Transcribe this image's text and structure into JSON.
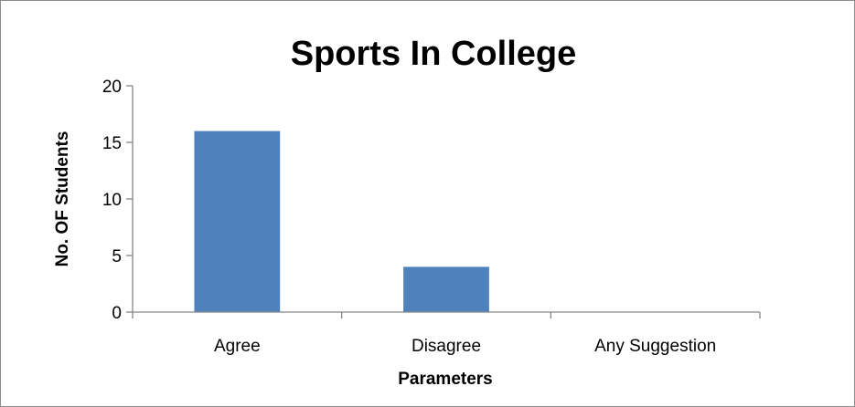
{
  "chart_data": {
    "type": "bar",
    "title": "Sports In College",
    "xlabel": "Parameters",
    "ylabel": "No. OF Students",
    "categories": [
      "Agree",
      "Disagree",
      "Any Suggestion"
    ],
    "values": [
      16,
      4,
      0
    ],
    "ylim": [
      0,
      20
    ],
    "yticks": [
      0,
      5,
      10,
      15,
      20
    ],
    "grid": false,
    "legend": "none",
    "bar_color": "#4f81bd",
    "axis_color": "#868686"
  }
}
